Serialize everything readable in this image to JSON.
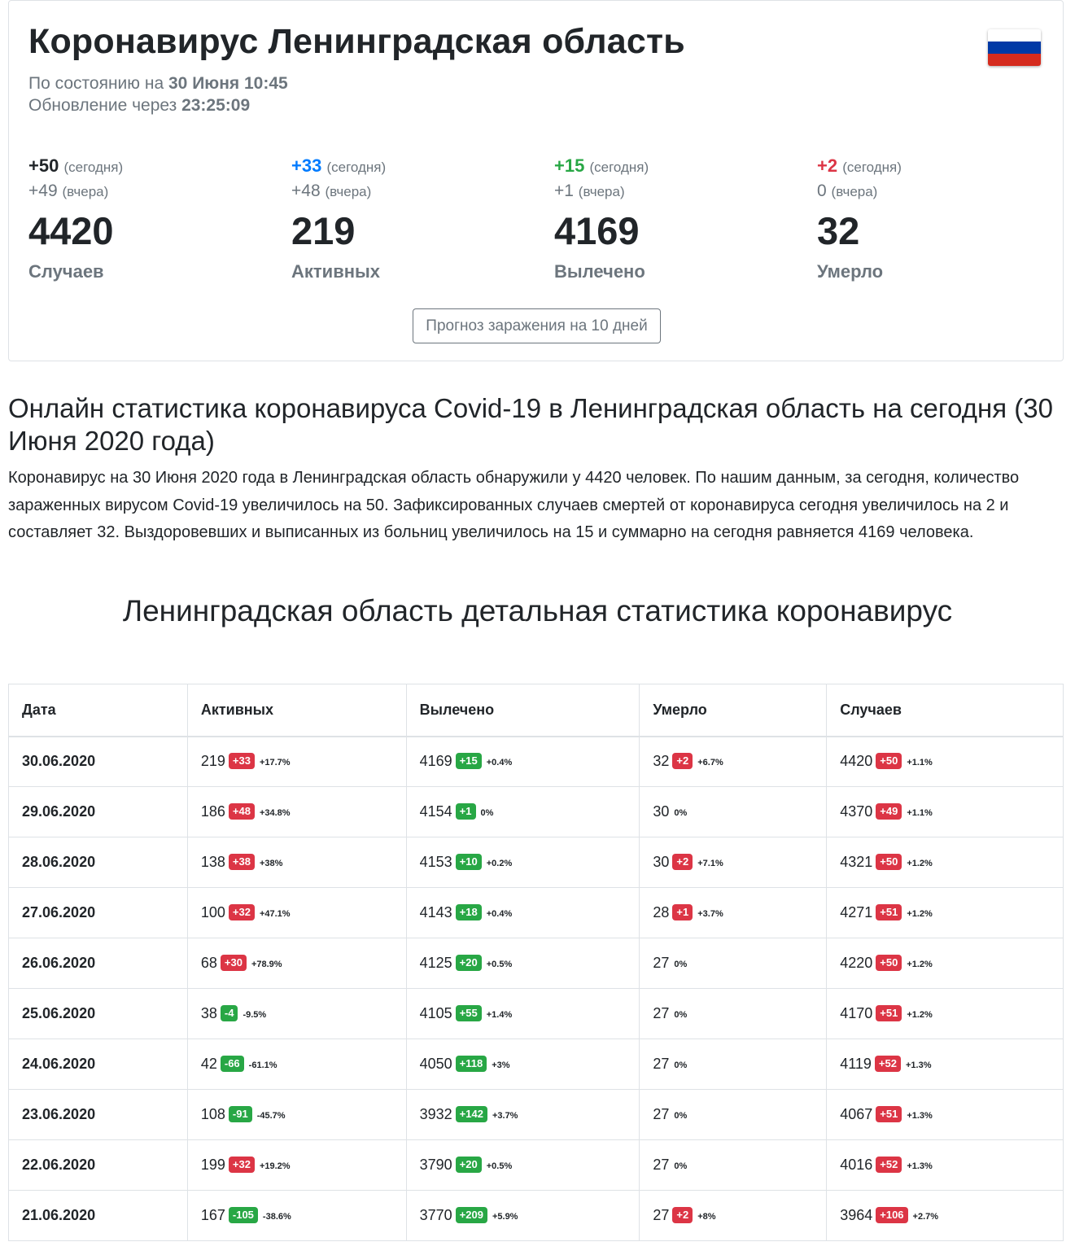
{
  "header": {
    "title": "Коронавирус Ленинградская область",
    "status_prefix": "По состоянию на",
    "status_date": "30 Июня 10:45",
    "update_prefix": "Обновление через",
    "update_time": "23:25:09",
    "flag_colors": [
      "#ffffff",
      "#0039a6",
      "#d52b1e"
    ]
  },
  "stats": [
    {
      "today": "+50",
      "today_label": "(сегодня)",
      "yesterday": "+49",
      "yesterday_label": "(вчера)",
      "total": "4420",
      "label": "Случаев",
      "color": "#212529"
    },
    {
      "today": "+33",
      "today_label": "(сегодня)",
      "yesterday": "+48",
      "yesterday_label": "(вчера)",
      "total": "219",
      "label": "Активных",
      "color": "#007bff"
    },
    {
      "today": "+15",
      "today_label": "(сегодня)",
      "yesterday": "+1",
      "yesterday_label": "(вчера)",
      "total": "4169",
      "label": "Вылечено",
      "color": "#28a745"
    },
    {
      "today": "+2",
      "today_label": "(сегодня)",
      "yesterday": "0",
      "yesterday_label": "(вчера)",
      "total": "32",
      "label": "Умерло",
      "color": "#dc3545"
    }
  ],
  "forecast_button": "Прогноз заражения на 10 дней",
  "section_title": "Онлайн статистика коронавируса Covid-19 в Ленинградская область на сегодня (30 Июня 2020 года)",
  "paragraph": "Коронавирус на 30 Июня 2020 года в Ленинградская область обнаружили у 4420 человек. По нашим данным, за сегодня, количество зараженных вирусом Covid-19 увеличилось на 50. Зафиксированных случаев смертей от коронавируса сегодня увеличилось на 2 и составляет 32. Выздоровевших и выписанных из больниц увеличилось на 15 и суммарно на сегодня равняется 4169 человека.",
  "table_title": "Ленинградская область детальная статистика коронавирус",
  "table": {
    "headers": [
      "Дата",
      "Активных",
      "Вылечено",
      "Умерло",
      "Случаев"
    ],
    "rows": [
      {
        "date": "30.06.2020",
        "active": [
          "219",
          "+33",
          "red",
          "+17.7%"
        ],
        "recovered": [
          "4169",
          "+15",
          "green",
          "+0.4%"
        ],
        "deaths": [
          "32",
          "+2",
          "red",
          "+6.7%"
        ],
        "cases": [
          "4420",
          "+50",
          "red",
          "+1.1%"
        ]
      },
      {
        "date": "29.06.2020",
        "active": [
          "186",
          "+48",
          "red",
          "+34.8%"
        ],
        "recovered": [
          "4154",
          "+1",
          "green",
          "0%"
        ],
        "deaths": [
          "30",
          "",
          "",
          "0%"
        ],
        "cases": [
          "4370",
          "+49",
          "red",
          "+1.1%"
        ]
      },
      {
        "date": "28.06.2020",
        "active": [
          "138",
          "+38",
          "red",
          "+38%"
        ],
        "recovered": [
          "4153",
          "+10",
          "green",
          "+0.2%"
        ],
        "deaths": [
          "30",
          "+2",
          "red",
          "+7.1%"
        ],
        "cases": [
          "4321",
          "+50",
          "red",
          "+1.2%"
        ]
      },
      {
        "date": "27.06.2020",
        "active": [
          "100",
          "+32",
          "red",
          "+47.1%"
        ],
        "recovered": [
          "4143",
          "+18",
          "green",
          "+0.4%"
        ],
        "deaths": [
          "28",
          "+1",
          "red",
          "+3.7%"
        ],
        "cases": [
          "4271",
          "+51",
          "red",
          "+1.2%"
        ]
      },
      {
        "date": "26.06.2020",
        "active": [
          "68",
          "+30",
          "red",
          "+78.9%"
        ],
        "recovered": [
          "4125",
          "+20",
          "green",
          "+0.5%"
        ],
        "deaths": [
          "27",
          "",
          "",
          "0%"
        ],
        "cases": [
          "4220",
          "+50",
          "red",
          "+1.2%"
        ]
      },
      {
        "date": "25.06.2020",
        "active": [
          "38",
          "-4",
          "green",
          "-9.5%"
        ],
        "recovered": [
          "4105",
          "+55",
          "green",
          "+1.4%"
        ],
        "deaths": [
          "27",
          "",
          "",
          "0%"
        ],
        "cases": [
          "4170",
          "+51",
          "red",
          "+1.2%"
        ]
      },
      {
        "date": "24.06.2020",
        "active": [
          "42",
          "-66",
          "green",
          "-61.1%"
        ],
        "recovered": [
          "4050",
          "+118",
          "green",
          "+3%"
        ],
        "deaths": [
          "27",
          "",
          "",
          "0%"
        ],
        "cases": [
          "4119",
          "+52",
          "red",
          "+1.3%"
        ]
      },
      {
        "date": "23.06.2020",
        "active": [
          "108",
          "-91",
          "green",
          "-45.7%"
        ],
        "recovered": [
          "3932",
          "+142",
          "green",
          "+3.7%"
        ],
        "deaths": [
          "27",
          "",
          "",
          "0%"
        ],
        "cases": [
          "4067",
          "+51",
          "red",
          "+1.3%"
        ]
      },
      {
        "date": "22.06.2020",
        "active": [
          "199",
          "+32",
          "red",
          "+19.2%"
        ],
        "recovered": [
          "3790",
          "+20",
          "green",
          "+0.5%"
        ],
        "deaths": [
          "27",
          "",
          "",
          "0%"
        ],
        "cases": [
          "4016",
          "+52",
          "red",
          "+1.3%"
        ]
      },
      {
        "date": "21.06.2020",
        "active": [
          "167",
          "-105",
          "green",
          "-38.6%"
        ],
        "recovered": [
          "3770",
          "+209",
          "green",
          "+5.9%"
        ],
        "deaths": [
          "27",
          "+2",
          "red",
          "+8%"
        ],
        "cases": [
          "3964",
          "+106",
          "red",
          "+2.7%"
        ]
      }
    ]
  }
}
